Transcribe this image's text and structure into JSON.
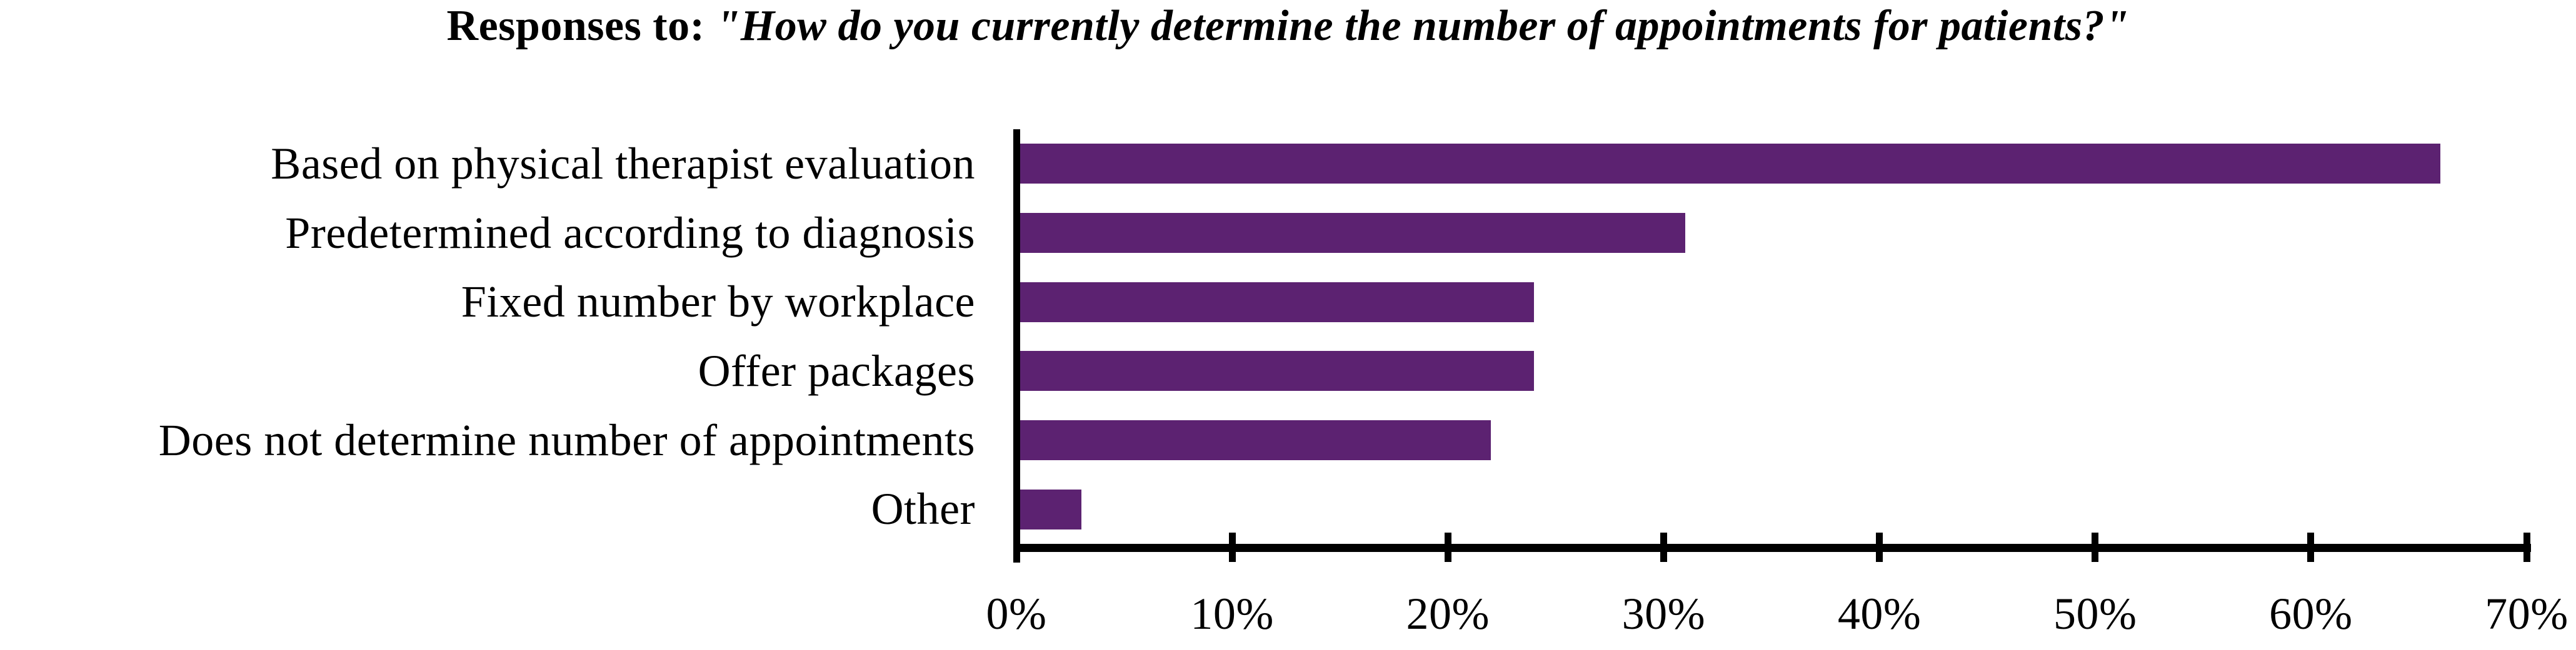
{
  "chart_data": {
    "type": "bar",
    "orientation": "horizontal",
    "title": "Responses to: \"How do you currently determine the number of appointments for patients?\"",
    "title_prefix": "Responses to: ",
    "title_question": "\"How do you currently determine the number of appointments for patients?\"",
    "categories": [
      "Based on physical therapist evaluation",
      "Predetermined according to diagnosis",
      "Fixed number by workplace",
      "Offer packages",
      "Does not determine number of appointments",
      "Other"
    ],
    "values": [
      66,
      31,
      24,
      24,
      22,
      3
    ],
    "unit": "%",
    "xlabel": "",
    "ylabel": "",
    "xlim": [
      0,
      70
    ],
    "x_tick_values": [
      0,
      10,
      20,
      30,
      40,
      50,
      60,
      70
    ],
    "x_tick_labels": [
      "0%",
      "10%",
      "20%",
      "30%",
      "40%",
      "50%",
      "60%",
      "70%"
    ],
    "grid": false,
    "legend": false,
    "data_labels": false,
    "bar_color": "#5C2271",
    "axis_color": "#000000",
    "text_color": "#000000",
    "background_color": "#FFFFFF"
  }
}
